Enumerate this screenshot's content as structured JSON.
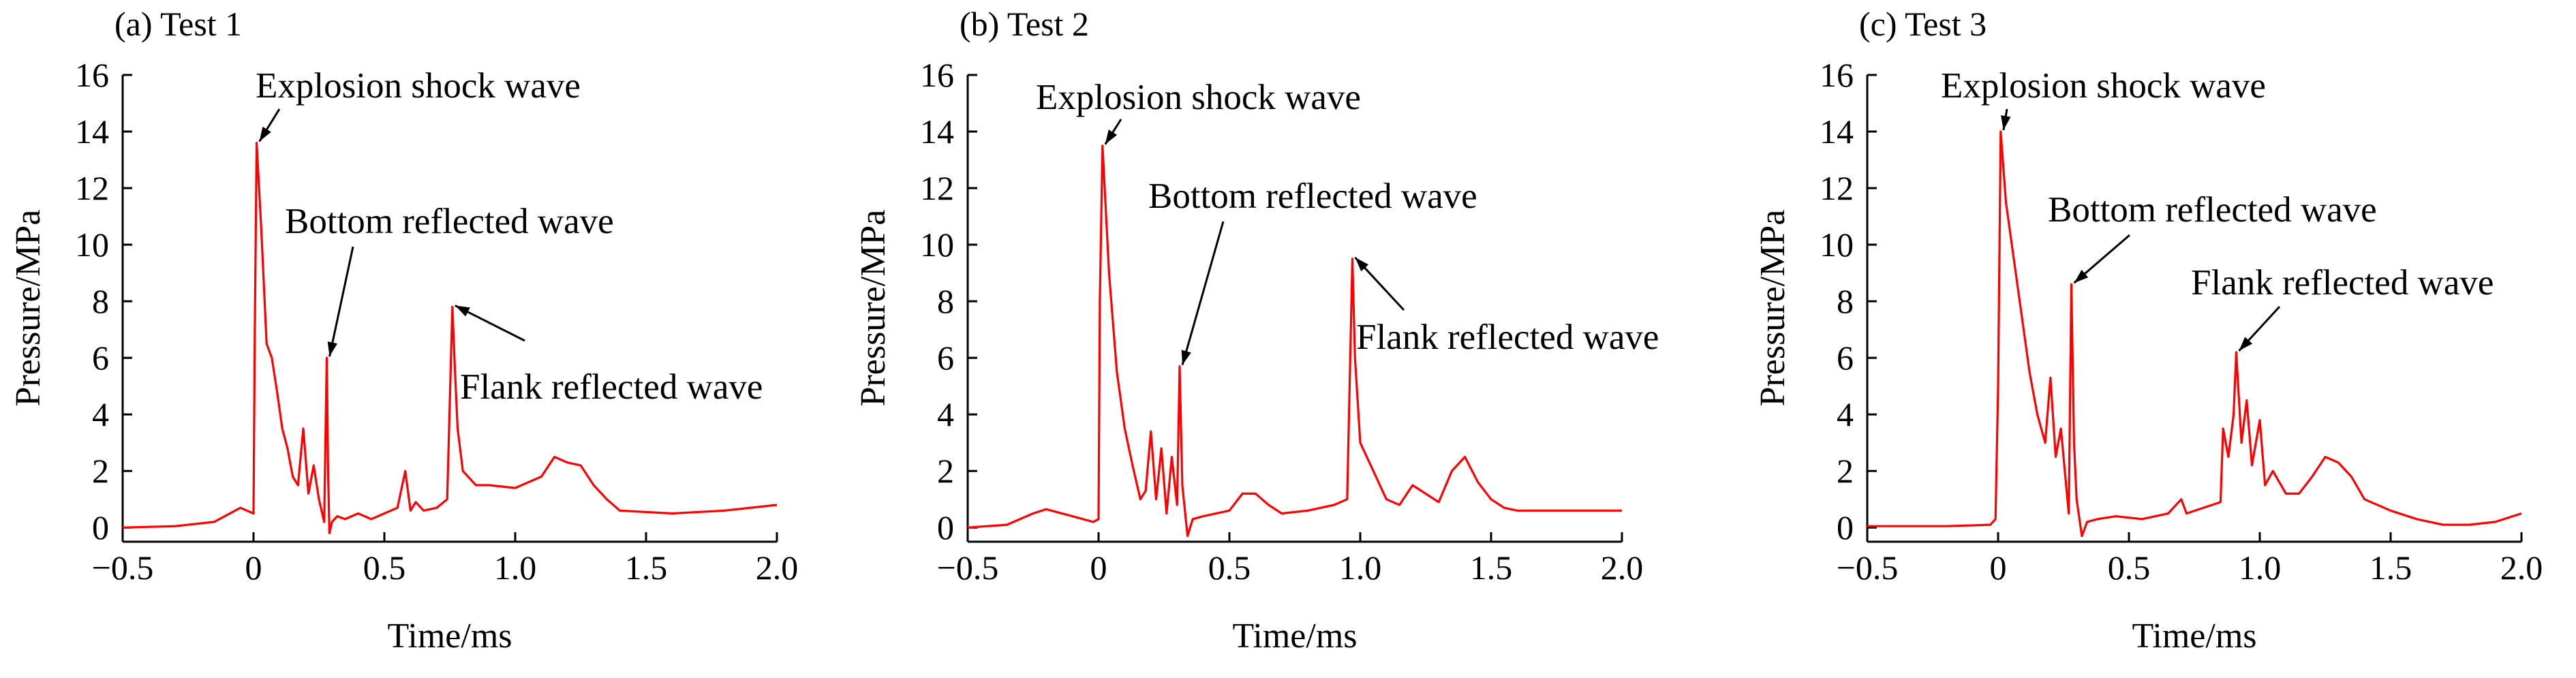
{
  "chart_data": [
    {
      "type": "line",
      "title": "(a) Test 1",
      "xlabel": "Time/ms",
      "ylabel": "Pressure/MPa",
      "xlim": [
        -0.5,
        2.0
      ],
      "ylim": [
        -0.5,
        16
      ],
      "xticks": [
        -0.5,
        0,
        0.5,
        1.0,
        1.5,
        2.0
      ],
      "xtick_labels": [
        "−0.5",
        "0",
        "0.5",
        "1.0",
        "1.5",
        "2.0"
      ],
      "yticks": [
        0,
        2,
        4,
        6,
        8,
        10,
        12,
        14,
        16
      ],
      "ytick_labels": [
        "0",
        "2",
        "4",
        "6",
        "8",
        "10",
        "12",
        "14",
        "16"
      ],
      "grid": false,
      "color": "#ff0000",
      "series": [
        {
          "x": [
            -0.5,
            -0.3,
            -0.15,
            -0.05,
            0.0,
            0.005,
            0.012,
            0.03,
            0.05,
            0.07,
            0.09,
            0.11,
            0.13,
            0.15,
            0.17,
            0.19,
            0.21,
            0.23,
            0.25,
            0.27,
            0.28,
            0.285,
            0.29,
            0.3,
            0.32,
            0.35,
            0.4,
            0.45,
            0.5,
            0.55,
            0.58,
            0.6,
            0.62,
            0.65,
            0.7,
            0.74,
            0.76,
            0.77,
            0.78,
            0.8,
            0.85,
            0.9,
            1.0,
            1.1,
            1.15,
            1.2,
            1.25,
            1.3,
            1.35,
            1.4,
            1.6,
            1.8,
            2.0
          ],
          "y": [
            0.0,
            0.05,
            0.2,
            0.7,
            0.5,
            7.0,
            13.6,
            10.5,
            6.5,
            6.0,
            4.8,
            3.5,
            2.8,
            1.8,
            1.5,
            3.5,
            1.2,
            2.2,
            1.0,
            0.2,
            6.0,
            2.0,
            -0.2,
            0.2,
            0.4,
            0.3,
            0.5,
            0.3,
            0.5,
            0.7,
            2.0,
            0.6,
            0.9,
            0.6,
            0.7,
            1.0,
            7.8,
            5.5,
            3.5,
            2.0,
            1.5,
            1.5,
            1.4,
            1.8,
            2.5,
            2.3,
            2.2,
            1.5,
            1.0,
            0.6,
            0.5,
            0.6,
            0.8
          ]
        }
      ],
      "annotations": [
        {
          "text": "Explosion shock wave",
          "x": 0.012,
          "y": 13.6
        },
        {
          "text": "Bottom reflected wave",
          "x": 0.28,
          "y": 6.0
        },
        {
          "text": "Flank reflected wave",
          "x": 0.76,
          "y": 7.8
        }
      ]
    },
    {
      "type": "line",
      "title": "(b) Test 2",
      "xlabel": "Time/ms",
      "ylabel": "Pressure/MPa",
      "xlim": [
        -0.5,
        2.0
      ],
      "ylim": [
        -0.5,
        16
      ],
      "xticks": [
        -0.5,
        0,
        0.5,
        1.0,
        1.5,
        2.0
      ],
      "xtick_labels": [
        "−0.5",
        "0",
        "0.5",
        "1.0",
        "1.5",
        "2.0"
      ],
      "yticks": [
        0,
        2,
        4,
        6,
        8,
        10,
        12,
        14,
        16
      ],
      "ytick_labels": [
        "0",
        "2",
        "4",
        "6",
        "8",
        "10",
        "12",
        "14",
        "16"
      ],
      "grid": false,
      "color": "#ff0000",
      "series": [
        {
          "x": [
            -0.5,
            -0.35,
            -0.25,
            -0.2,
            -0.1,
            -0.02,
            0.0,
            0.005,
            0.015,
            0.04,
            0.07,
            0.1,
            0.13,
            0.16,
            0.18,
            0.2,
            0.22,
            0.24,
            0.26,
            0.28,
            0.3,
            0.31,
            0.32,
            0.34,
            0.36,
            0.4,
            0.5,
            0.55,
            0.6,
            0.65,
            0.7,
            0.8,
            0.9,
            0.95,
            0.97,
            0.98,
            1.0,
            1.05,
            1.1,
            1.15,
            1.2,
            1.3,
            1.35,
            1.4,
            1.45,
            1.5,
            1.55,
            1.6,
            1.8,
            2.0
          ],
          "y": [
            0.0,
            0.1,
            0.5,
            0.65,
            0.4,
            0.2,
            0.3,
            8.0,
            13.5,
            9.0,
            5.5,
            3.5,
            2.2,
            1.0,
            1.3,
            3.4,
            1.0,
            2.8,
            0.5,
            2.5,
            0.8,
            5.7,
            1.5,
            -0.3,
            0.3,
            0.4,
            0.6,
            1.2,
            1.2,
            0.8,
            0.5,
            0.6,
            0.8,
            1.0,
            9.5,
            6.0,
            3.0,
            2.0,
            1.0,
            0.8,
            1.5,
            0.9,
            2.0,
            2.5,
            1.6,
            1.0,
            0.7,
            0.6,
            0.6,
            0.6
          ]
        }
      ],
      "annotations": [
        {
          "text": "Explosion shock wave",
          "x": 0.015,
          "y": 13.5
        },
        {
          "text": "Bottom reflected wave",
          "x": 0.31,
          "y": 5.7
        },
        {
          "text": "Flank reflected wave",
          "x": 0.97,
          "y": 9.5
        }
      ]
    },
    {
      "type": "line",
      "title": "(c) Test 3",
      "xlabel": "Time/ms",
      "ylabel": "Pressure/MPa",
      "xlim": [
        -0.5,
        2.0
      ],
      "ylim": [
        -0.5,
        16
      ],
      "xticks": [
        -0.5,
        0,
        0.5,
        1.0,
        1.5,
        2.0
      ],
      "xtick_labels": [
        "−0.5",
        "0",
        "0.5",
        "1.0",
        "1.5",
        "2.0"
      ],
      "yticks": [
        0,
        2,
        4,
        6,
        8,
        10,
        12,
        14,
        16
      ],
      "ytick_labels": [
        "0",
        "2",
        "4",
        "6",
        "8",
        "10",
        "12",
        "14",
        "16"
      ],
      "grid": false,
      "color": "#ff0000",
      "series": [
        {
          "x": [
            -0.5,
            -0.2,
            -0.03,
            -0.01,
            0.0,
            0.01,
            0.03,
            0.06,
            0.09,
            0.12,
            0.15,
            0.18,
            0.2,
            0.22,
            0.24,
            0.26,
            0.27,
            0.28,
            0.29,
            0.3,
            0.32,
            0.34,
            0.38,
            0.45,
            0.55,
            0.65,
            0.7,
            0.72,
            0.85,
            0.86,
            0.88,
            0.9,
            0.91,
            0.93,
            0.95,
            0.97,
            1.0,
            1.02,
            1.05,
            1.1,
            1.15,
            1.2,
            1.25,
            1.3,
            1.35,
            1.4,
            1.5,
            1.6,
            1.7,
            1.8,
            1.9,
            2.0
          ],
          "y": [
            0.05,
            0.05,
            0.1,
            0.3,
            5.0,
            14.0,
            11.5,
            9.5,
            7.5,
            5.5,
            4.0,
            3.0,
            5.3,
            2.5,
            3.5,
            1.5,
            0.5,
            8.6,
            3.0,
            1.0,
            -0.3,
            0.2,
            0.3,
            0.4,
            0.3,
            0.5,
            1.0,
            0.5,
            0.9,
            3.5,
            2.5,
            4.0,
            6.2,
            3.0,
            4.5,
            2.2,
            3.8,
            1.5,
            2.0,
            1.2,
            1.2,
            1.8,
            2.5,
            2.3,
            1.8,
            1.0,
            0.6,
            0.3,
            0.1,
            0.1,
            0.2,
            0.5
          ]
        }
      ],
      "annotations": [
        {
          "text": "Explosion shock wave",
          "x": 0.01,
          "y": 14.0
        },
        {
          "text": "Bottom reflected wave",
          "x": 0.28,
          "y": 8.6
        },
        {
          "text": "Flank reflected wave",
          "x": 0.91,
          "y": 6.2
        }
      ]
    }
  ]
}
